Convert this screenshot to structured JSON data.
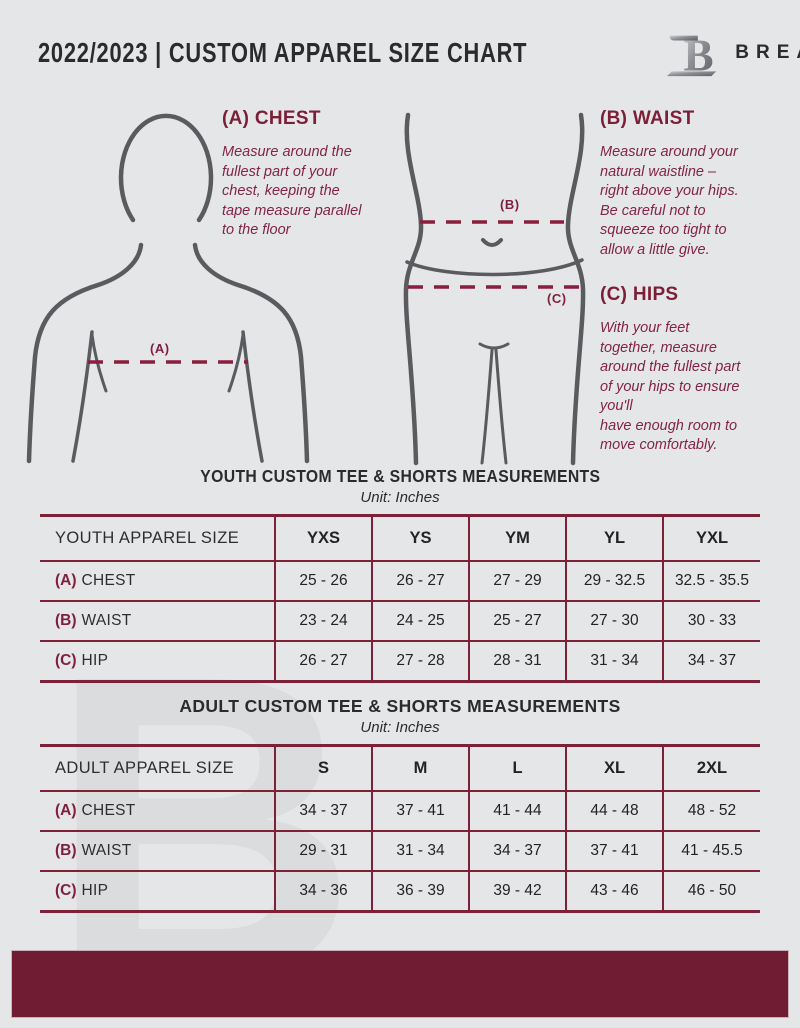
{
  "header": {
    "title": "2022/2023  |  CUSTOM APPAREL SIZE CHART",
    "brand": "BREAKAWAY",
    "logo_icon": "breakaway-b-monogram"
  },
  "colors": {
    "background": "#e5e6e8",
    "maroon_heading": "#7b1f38",
    "maroon_text": "#822444",
    "table_border": "#7d2138",
    "dashed_line": "#8a1e3b",
    "figure_stroke": "#5a5b5e",
    "footer_bar": "#701d33",
    "dark_text": "#2b2b2d"
  },
  "guide": {
    "chest": {
      "marker": "(A)",
      "heading": "(A) CHEST",
      "body": "Measure around the\nfullest part of your\nchest, keeping the\ntape measure parallel\nto the floor"
    },
    "waist": {
      "marker": "(B)",
      "heading": "(B) WAIST",
      "body": "Measure around your\nnatural waistline –\nright above your hips.\nBe careful not to\nsqueeze too tight to\nallow a little give."
    },
    "hips": {
      "marker": "(C)",
      "heading": "(C) HIPS",
      "body": "With your feet\ntogether, measure\naround the fullest part\nof your hips to ensure\nyou'll\nhave enough room to\nmove comfortably."
    }
  },
  "youth_table": {
    "title": "YOUTH CUSTOM TEE & SHORTS MEASUREMENTS",
    "subtitle": "Unit: Inches",
    "size_column_header": "YOUTH APPAREL SIZE",
    "sizes": [
      "YXS",
      "YS",
      "YM",
      "YL",
      "YXL"
    ],
    "rows": [
      {
        "label_prefix": "(A)",
        "label": "CHEST",
        "values": [
          "25 - 26",
          "26 - 27",
          "27 - 29",
          "29 - 32.5",
          "32.5 - 35.5"
        ]
      },
      {
        "label_prefix": "(B)",
        "label": "WAIST",
        "values": [
          "23 - 24",
          "24 - 25",
          "25 - 27",
          "27 - 30",
          "30 - 33"
        ]
      },
      {
        "label_prefix": "(C)",
        "label": "HIP",
        "values": [
          "26 - 27",
          "27 - 28",
          "28 - 31",
          "31 - 34",
          "34 - 37"
        ]
      }
    ]
  },
  "adult_table": {
    "title": "ADULT CUSTOM TEE & SHORTS MEASUREMENTS",
    "subtitle": "Unit: Inches",
    "size_column_header": "ADULT APPAREL SIZE",
    "sizes": [
      "S",
      "M",
      "L",
      "XL",
      "2XL"
    ],
    "rows": [
      {
        "label_prefix": "(A)",
        "label": "CHEST",
        "values": [
          "34 - 37",
          "37 - 41",
          "41 - 44",
          "44 - 48",
          "48 - 52"
        ]
      },
      {
        "label_prefix": "(B)",
        "label": "WAIST",
        "values": [
          "29 - 31",
          "31 - 34",
          "34 - 37",
          "37 - 41",
          "41 - 45.5"
        ]
      },
      {
        "label_prefix": "(C)",
        "label": "HIP",
        "values": [
          "34 - 36",
          "36 - 39",
          "39 - 42",
          "43 - 46",
          "46 - 50"
        ]
      }
    ]
  },
  "watermark": {
    "glyph": "B"
  }
}
